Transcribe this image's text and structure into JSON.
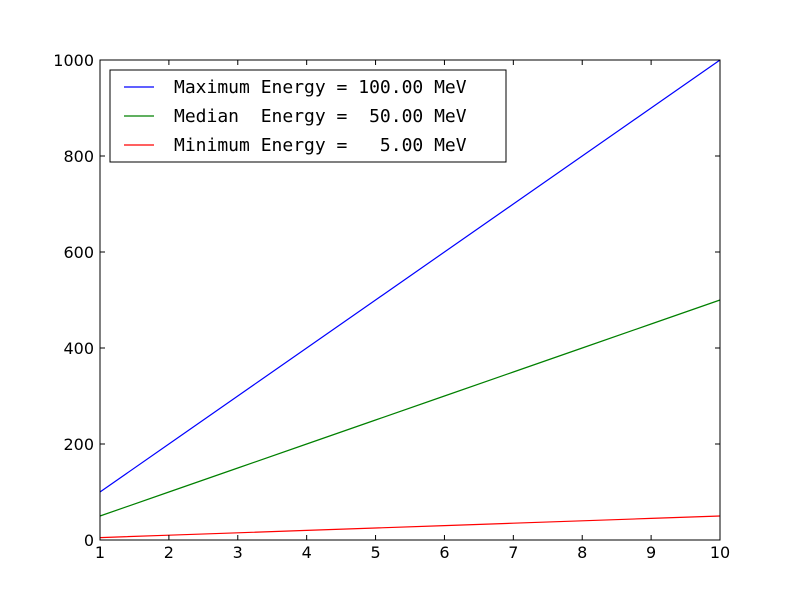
{
  "chart_data": {
    "type": "line",
    "title": "",
    "xlabel": "",
    "ylabel": "",
    "xlim": [
      1,
      10
    ],
    "ylim": [
      0,
      1000
    ],
    "x_ticks": [
      1,
      2,
      3,
      4,
      5,
      6,
      7,
      8,
      9,
      10
    ],
    "y_ticks": [
      0,
      200,
      400,
      600,
      800,
      1000
    ],
    "x_tick_labels": [
      "1",
      "2",
      "3",
      "4",
      "5",
      "6",
      "7",
      "8",
      "9",
      "10"
    ],
    "y_tick_labels": [
      "0",
      "200",
      "400",
      "600",
      "800",
      "1000"
    ],
    "grid": false,
    "legend_position": "top-left",
    "x": [
      1,
      2,
      3,
      4,
      5,
      6,
      7,
      8,
      9,
      10
    ],
    "series": [
      {
        "name": "Maximum Energy = 100.00 MeV",
        "color": "#0000ff",
        "values": [
          100,
          200,
          300,
          400,
          500,
          600,
          700,
          800,
          900,
          1000
        ]
      },
      {
        "name": "Median  Energy =  50.00 MeV",
        "color": "#008000",
        "values": [
          50,
          100,
          150,
          200,
          250,
          300,
          350,
          400,
          450,
          500
        ]
      },
      {
        "name": "Minimum Energy =   5.00 MeV",
        "color": "#ff0000",
        "values": [
          5,
          10,
          15,
          20,
          25,
          30,
          35,
          40,
          45,
          50
        ]
      }
    ]
  }
}
